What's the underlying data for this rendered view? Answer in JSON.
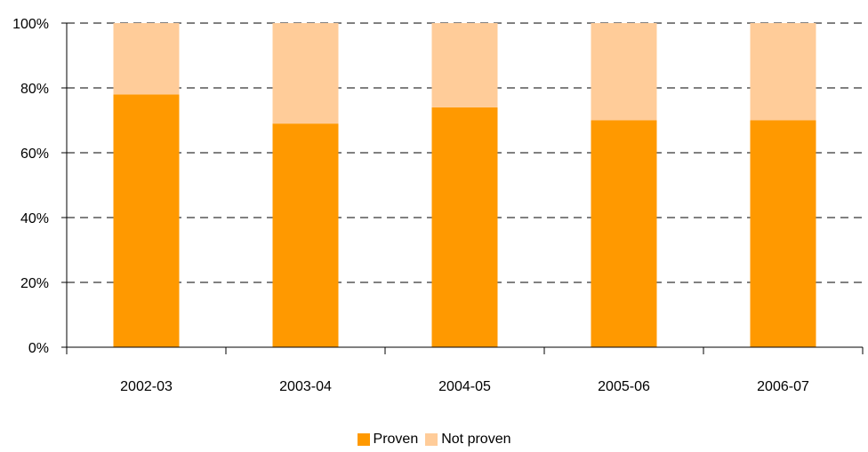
{
  "chart_data": {
    "type": "bar",
    "stacked": true,
    "percent_stacked": true,
    "categories": [
      "2002-03",
      "2003-04",
      "2004-05",
      "2005-06",
      "2006-07"
    ],
    "series": [
      {
        "name": "Proven",
        "values": [
          78,
          69,
          74,
          70,
          70
        ],
        "color": "#FF9900"
      },
      {
        "name": "Not proven",
        "values": [
          22,
          31,
          26,
          30,
          30
        ],
        "color": "#FFCC99"
      }
    ],
    "y_ticks": [
      "0%",
      "20%",
      "40%",
      "60%",
      "80%",
      "100%"
    ],
    "ylim": [
      0,
      100
    ],
    "grid": "dashed horizontal",
    "legend_position": "bottom"
  }
}
